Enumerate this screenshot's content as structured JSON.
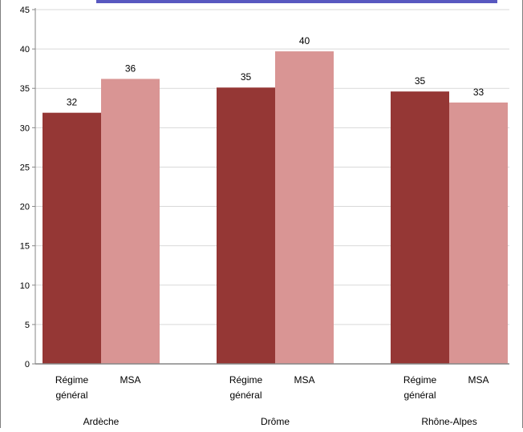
{
  "chart_data": {
    "type": "bar",
    "title": "",
    "xlabel": "",
    "ylabel": "",
    "ylim": [
      0,
      45
    ],
    "yticks": [
      0,
      5,
      10,
      15,
      20,
      25,
      30,
      35,
      40,
      45
    ],
    "grid": true,
    "legend": "none",
    "groups": [
      "Ardèche",
      "Drôme",
      "Rhône-Alpes"
    ],
    "category_labels": [
      [
        "Régime",
        "général"
      ],
      [
        "MSA"
      ]
    ],
    "series": [
      {
        "color": "#953735",
        "values": [
          32,
          35,
          35
        ],
        "display_values": [
          31.9,
          35.1,
          34.6
        ]
      },
      {
        "color": "#d99594",
        "values": [
          36,
          40,
          33
        ],
        "display_values": [
          36.2,
          39.7,
          33.2
        ]
      }
    ],
    "colors": {
      "axis": "#868686",
      "grid": "#d9d9d9",
      "frame": "#7f7f7f",
      "title_strip": "#3b3bb5"
    }
  }
}
